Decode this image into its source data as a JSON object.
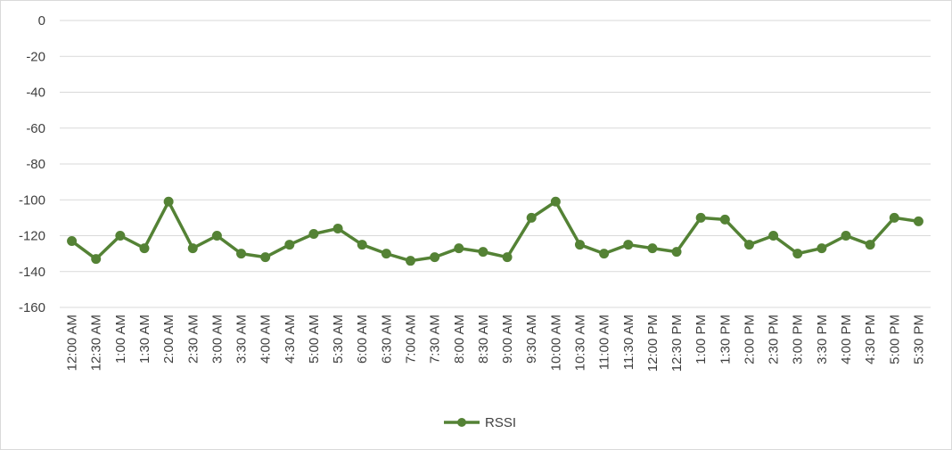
{
  "chart_data": {
    "type": "line",
    "title": "",
    "xlabel": "",
    "ylabel": "",
    "ylim": [
      -160,
      0
    ],
    "y_ticks": [
      0,
      -20,
      -40,
      -60,
      -80,
      -100,
      -120,
      -140,
      -160
    ],
    "grid": true,
    "legend_position": "bottom",
    "line_color": "#548235",
    "categories": [
      "12:00 AM",
      "12:30 AM",
      "1:00 AM",
      "1:30 AM",
      "2:00 AM",
      "2:30 AM",
      "3:00 AM",
      "3:30 AM",
      "4:00 AM",
      "4:30 AM",
      "5:00 AM",
      "5:30 AM",
      "6:00 AM",
      "6:30 AM",
      "7:00 AM",
      "7:30 AM",
      "8:00 AM",
      "8:30 AM",
      "9:00 AM",
      "9:30 AM",
      "10:00 AM",
      "10:30 AM",
      "11:00 AM",
      "11:30 AM",
      "12:00 PM",
      "12:30 PM",
      "1:00 PM",
      "1:30 PM",
      "2:00 PM",
      "2:30 PM",
      "3:00 PM",
      "3:30 PM",
      "4:00 PM",
      "4:30 PM",
      "5:00 PM",
      "5:30 PM"
    ],
    "series": [
      {
        "name": "RSSI",
        "values": [
          -123,
          -133,
          -120,
          -127,
          -101,
          -127,
          -120,
          -130,
          -132,
          -125,
          -119,
          -116,
          -125,
          -130,
          -134,
          -132,
          -127,
          -129,
          -132,
          -110,
          -101,
          -125,
          -130,
          -125,
          -127,
          -129,
          -110,
          -111,
          -125,
          -120,
          -130,
          -127,
          -120,
          -125,
          -110,
          -112
        ]
      }
    ]
  }
}
